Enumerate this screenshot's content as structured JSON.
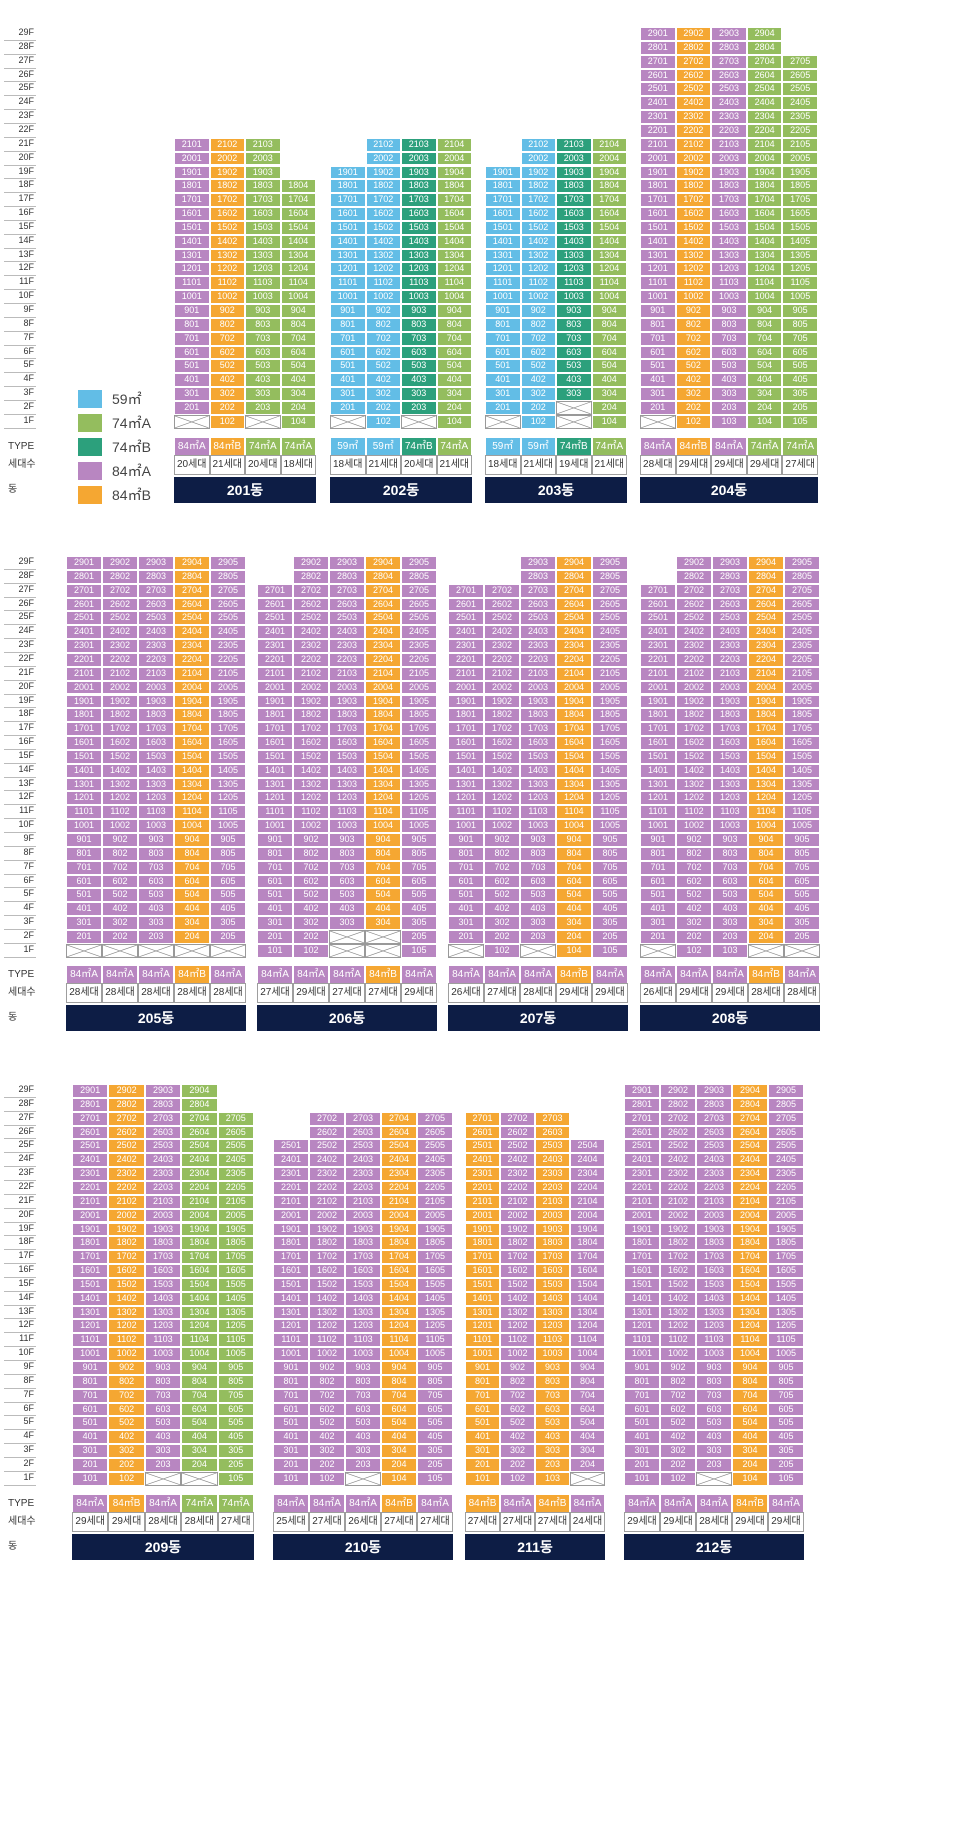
{
  "colors": {
    "t59": "#62bde6",
    "t74A": "#94bd5e",
    "t74B": "#2ca07c",
    "t84A": "#b886c1",
    "t84B": "#f5a732",
    "navy": "#0d1d45"
  },
  "labels": {
    "type": "TYPE",
    "count": "세대수",
    "dong": "동"
  },
  "legend": [
    {
      "key": "t59",
      "label": "59㎡"
    },
    {
      "key": "t74A",
      "label": "74㎡A"
    },
    {
      "key": "t74B",
      "label": "74㎡B"
    },
    {
      "key": "t84A",
      "label": "84㎡A"
    },
    {
      "key": "t84B",
      "label": "84㎡B"
    }
  ],
  "sections": [
    {
      "floors": [
        "29F",
        "28F",
        "27F",
        "26F",
        "25F",
        "24F",
        "23F",
        "22F",
        "21F",
        "20F",
        "19F",
        "18F",
        "17F",
        "16F",
        "15F",
        "14F",
        "13F",
        "12F",
        "11F",
        "10F",
        "9F",
        "8F",
        "7F",
        "6F",
        "5F",
        "4F",
        "3F",
        "2F",
        "1F"
      ],
      "buildings": [
        {
          "name": "201동",
          "lines": [
            {
              "type": "84㎡A",
              "count": "20세대",
              "color": "t84A",
              "top": 21,
              "empty": [
                1
              ],
              "over": {}
            },
            {
              "type": "84㎡B",
              "count": "21세대",
              "color": "t84B",
              "top": 21,
              "empty": [],
              "over": {}
            },
            {
              "type": "74㎡A",
              "count": "20세대",
              "color": "t74A",
              "top": 21,
              "empty": [
                1
              ],
              "over": {}
            },
            {
              "type": "74㎡A",
              "count": "18세대",
              "color": "t74A",
              "top": 18,
              "empty": [],
              "over": {}
            }
          ]
        },
        {
          "name": "202동",
          "lines": [
            {
              "type": "59㎡",
              "count": "18세대",
              "color": "t59",
              "top": 19,
              "empty": [
                1
              ],
              "over": {}
            },
            {
              "type": "59㎡",
              "count": "21세대",
              "color": "t59",
              "top": 21,
              "empty": [],
              "over": {}
            },
            {
              "type": "74㎡B",
              "count": "20세대",
              "color": "t74B",
              "top": 21,
              "empty": [
                1
              ],
              "over": {}
            },
            {
              "type": "74㎡A",
              "count": "21세대",
              "color": "t74A",
              "top": 21,
              "empty": [],
              "over": {}
            }
          ]
        },
        {
          "name": "203동",
          "lines": [
            {
              "type": "59㎡",
              "count": "18세대",
              "color": "t59",
              "top": 19,
              "empty": [
                1
              ],
              "over": {}
            },
            {
              "type": "59㎡",
              "count": "21세대",
              "color": "t59",
              "top": 21,
              "empty": [],
              "over": {}
            },
            {
              "type": "74㎡B",
              "count": "19세대",
              "color": "t74B",
              "top": 21,
              "empty": [
                1,
                2
              ],
              "over": {}
            },
            {
              "type": "74㎡A",
              "count": "21세대",
              "color": "t74A",
              "top": 21,
              "empty": [],
              "over": {}
            }
          ]
        },
        {
          "name": "204동",
          "lines": [
            {
              "type": "84㎡A",
              "count": "28세대",
              "color": "t84A",
              "top": 29,
              "empty": [
                1
              ],
              "over": {}
            },
            {
              "type": "84㎡B",
              "count": "29세대",
              "color": "t84B",
              "top": 29,
              "empty": [],
              "over": {}
            },
            {
              "type": "84㎡A",
              "count": "29세대",
              "color": "t84A",
              "top": 29,
              "empty": [],
              "over": {}
            },
            {
              "type": "74㎡A",
              "count": "29세대",
              "color": "t74A",
              "top": 29,
              "empty": [],
              "over": {}
            },
            {
              "type": "74㎡A",
              "count": "27세대",
              "color": "t74A",
              "top": 27,
              "empty": [],
              "over": {}
            }
          ]
        }
      ]
    },
    {
      "floors": [
        "29F",
        "28F",
        "27F",
        "26F",
        "25F",
        "24F",
        "23F",
        "22F",
        "21F",
        "20F",
        "19F",
        "18F",
        "17F",
        "16F",
        "15F",
        "14F",
        "13F",
        "12F",
        "11F",
        "10F",
        "9F",
        "8F",
        "7F",
        "6F",
        "5F",
        "4F",
        "3F",
        "2F",
        "1F"
      ],
      "buildings": [
        {
          "name": "205동",
          "lines": [
            {
              "type": "84㎡A",
              "count": "28세대",
              "color": "t84A",
              "top": 29,
              "empty": [
                1
              ],
              "over": {}
            },
            {
              "type": "84㎡A",
              "count": "28세대",
              "color": "t84A",
              "top": 29,
              "empty": [
                1
              ],
              "over": {}
            },
            {
              "type": "84㎡A",
              "count": "28세대",
              "color": "t84A",
              "top": 29,
              "empty": [
                1
              ],
              "over": {}
            },
            {
              "type": "84㎡B",
              "count": "28세대",
              "color": "t84B",
              "top": 29,
              "empty": [
                1
              ],
              "over": {}
            },
            {
              "type": "84㎡A",
              "count": "28세대",
              "color": "t84A",
              "top": 29,
              "empty": [
                1
              ],
              "over": {}
            }
          ]
        },
        {
          "name": "206동",
          "lines": [
            {
              "type": "84㎡A",
              "count": "27세대",
              "color": "t84A",
              "top": 27,
              "empty": [],
              "over": {}
            },
            {
              "type": "84㎡A",
              "count": "29세대",
              "color": "t84A",
              "top": 29,
              "empty": [],
              "over": {}
            },
            {
              "type": "84㎡A",
              "count": "27세대",
              "color": "t84A",
              "top": 29,
              "empty": [
                1,
                2
              ],
              "over": {}
            },
            {
              "type": "84㎡B",
              "count": "27세대",
              "color": "t84B",
              "top": 29,
              "empty": [
                1,
                2
              ],
              "over": {}
            },
            {
              "type": "84㎡A",
              "count": "29세대",
              "color": "t84A",
              "top": 29,
              "empty": [],
              "over": {}
            }
          ]
        },
        {
          "name": "207동",
          "lines": [
            {
              "type": "84㎡A",
              "count": "26세대",
              "color": "t84A",
              "top": 27,
              "empty": [
                1
              ],
              "over": {}
            },
            {
              "type": "84㎡A",
              "count": "27세대",
              "color": "t84A",
              "top": 27,
              "empty": [],
              "over": {}
            },
            {
              "type": "84㎡A",
              "count": "28세대",
              "color": "t84A",
              "top": 29,
              "empty": [
                1
              ],
              "over": {}
            },
            {
              "type": "84㎡B",
              "count": "29세대",
              "color": "t84B",
              "top": 29,
              "empty": [],
              "over": {}
            },
            {
              "type": "84㎡A",
              "count": "29세대",
              "color": "t84A",
              "top": 29,
              "empty": [],
              "over": {}
            }
          ]
        },
        {
          "name": "208동",
          "lines": [
            {
              "type": "84㎡A",
              "count": "26세대",
              "color": "t84A",
              "top": 27,
              "empty": [
                1
              ],
              "over": {}
            },
            {
              "type": "84㎡A",
              "count": "29세대",
              "color": "t84A",
              "top": 29,
              "empty": [],
              "over": {}
            },
            {
              "type": "84㎡A",
              "count": "29세대",
              "color": "t84A",
              "top": 29,
              "empty": [],
              "over": {}
            },
            {
              "type": "84㎡B",
              "count": "28세대",
              "color": "t84B",
              "top": 29,
              "empty": [
                1
              ],
              "over": {}
            },
            {
              "type": "84㎡A",
              "count": "28세대",
              "color": "t84A",
              "top": 29,
              "empty": [
                1
              ],
              "over": {}
            }
          ]
        }
      ]
    },
    {
      "floors": [
        "29F",
        "28F",
        "27F",
        "26F",
        "25F",
        "24F",
        "23F",
        "22F",
        "21F",
        "20F",
        "19F",
        "18F",
        "17F",
        "16F",
        "15F",
        "14F",
        "13F",
        "12F",
        "11F",
        "10F",
        "9F",
        "8F",
        "7F",
        "6F",
        "5F",
        "4F",
        "3F",
        "2F",
        "1F"
      ],
      "buildings": [
        {
          "name": "209동",
          "lines": [
            {
              "type": "84㎡A",
              "count": "29세대",
              "color": "t84A",
              "top": 29,
              "empty": [],
              "over": {}
            },
            {
              "type": "84㎡B",
              "count": "29세대",
              "color": "t84B",
              "top": 29,
              "empty": [],
              "over": {}
            },
            {
              "type": "84㎡A",
              "count": "28세대",
              "color": "t84A",
              "top": 29,
              "empty": [
                1
              ],
              "over": {}
            },
            {
              "type": "74㎡A",
              "count": "28세대",
              "color": "t74A",
              "top": 29,
              "empty": [
                1
              ],
              "over": {}
            },
            {
              "type": "74㎡A",
              "count": "27세대",
              "color": "t74A",
              "top": 27,
              "empty": [],
              "over": {}
            }
          ]
        },
        {
          "name": "210동",
          "lines": [
            {
              "type": "84㎡A",
              "count": "25세대",
              "color": "t84A",
              "top": 25,
              "empty": [],
              "over": {}
            },
            {
              "type": "84㎡A",
              "count": "27세대",
              "color": "t84A",
              "top": 27,
              "empty": [],
              "over": {}
            },
            {
              "type": "84㎡A",
              "count": "26세대",
              "color": "t84A",
              "top": 27,
              "empty": [
                1
              ],
              "over": {}
            },
            {
              "type": "84㎡B",
              "count": "27세대",
              "color": "t84B",
              "top": 27,
              "empty": [],
              "over": {}
            },
            {
              "type": "84㎡A",
              "count": "27세대",
              "color": "t84A",
              "top": 27,
              "empty": [],
              "over": {}
            }
          ]
        },
        {
          "name": "211동",
          "lines": [
            {
              "type": "84㎡B",
              "count": "27세대",
              "color": "t84B",
              "top": 27,
              "empty": [],
              "over": {}
            },
            {
              "type": "84㎡A",
              "count": "27세대",
              "color": "t84A",
              "top": 27,
              "empty": [],
              "over": {}
            },
            {
              "type": "84㎡B",
              "count": "27세대",
              "color": "t84B",
              "top": 27,
              "empty": [],
              "over": {}
            },
            {
              "type": "84㎡A",
              "count": "24세대",
              "color": "t84A",
              "top": 25,
              "empty": [
                1
              ],
              "over": {}
            }
          ]
        },
        {
          "name": "212동",
          "lines": [
            {
              "type": "84㎡A",
              "count": "29세대",
              "color": "t84A",
              "top": 29,
              "empty": [],
              "over": {}
            },
            {
              "type": "84㎡A",
              "count": "29세대",
              "color": "t84A",
              "top": 29,
              "empty": [],
              "over": {}
            },
            {
              "type": "84㎡A",
              "count": "28세대",
              "color": "t84A",
              "top": 29,
              "empty": [
                1
              ],
              "over": {}
            },
            {
              "type": "84㎡B",
              "count": "29세대",
              "color": "t84B",
              "top": 29,
              "empty": [],
              "over": {}
            },
            {
              "type": "84㎡A",
              "count": "29세대",
              "color": "t84A",
              "top": 29,
              "empty": [],
              "over": {}
            }
          ]
        }
      ]
    }
  ]
}
